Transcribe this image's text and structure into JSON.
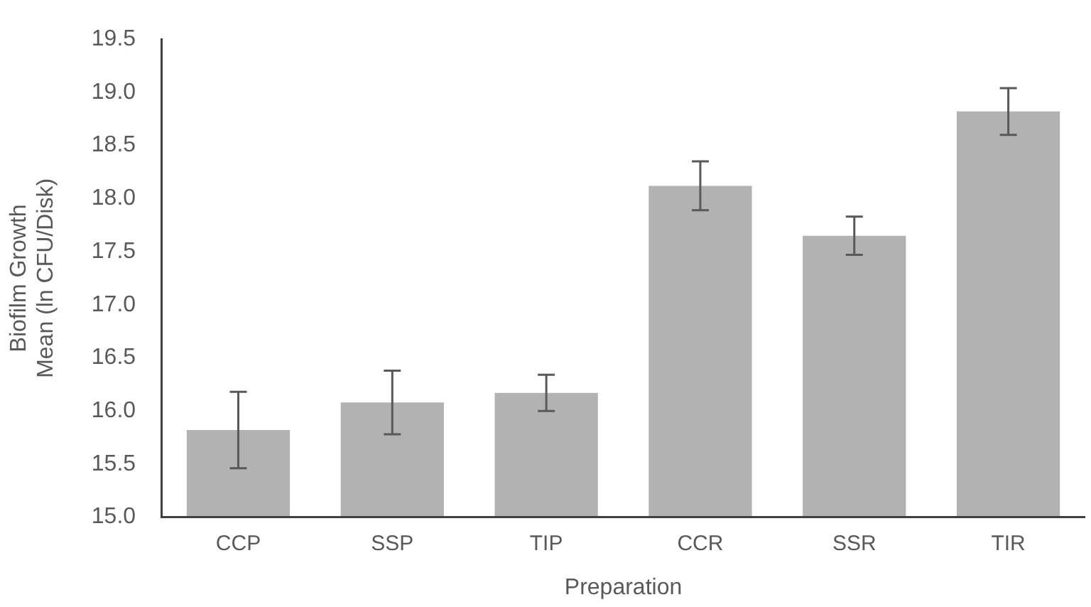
{
  "chart_data": {
    "type": "bar",
    "xlabel": "Preparation",
    "ylabel": "Biofilm Growth\nMean (ln CFU/Disk)",
    "categories": [
      "CCP",
      "SSP",
      "TIP",
      "CCR",
      "SSR",
      "TIR"
    ],
    "values": [
      15.82,
      16.08,
      16.17,
      18.12,
      17.65,
      18.82
    ],
    "errors": [
      0.36,
      0.3,
      0.17,
      0.23,
      0.18,
      0.22
    ],
    "color": "#b2b2b2",
    "ylim": [
      15,
      19.5
    ],
    "yticks": [
      {
        "value": 15,
        "label": "15.0"
      },
      15.5,
      {
        "value": 16,
        "label": "16.0"
      },
      16.5,
      {
        "value": 17,
        "label": "17.0"
      },
      17.5,
      {
        "value": 18,
        "label": "18.0"
      },
      18.5,
      {
        "value": 19,
        "label": "19.0"
      },
      19.5
    ],
    "grid": false,
    "legend": false
  }
}
